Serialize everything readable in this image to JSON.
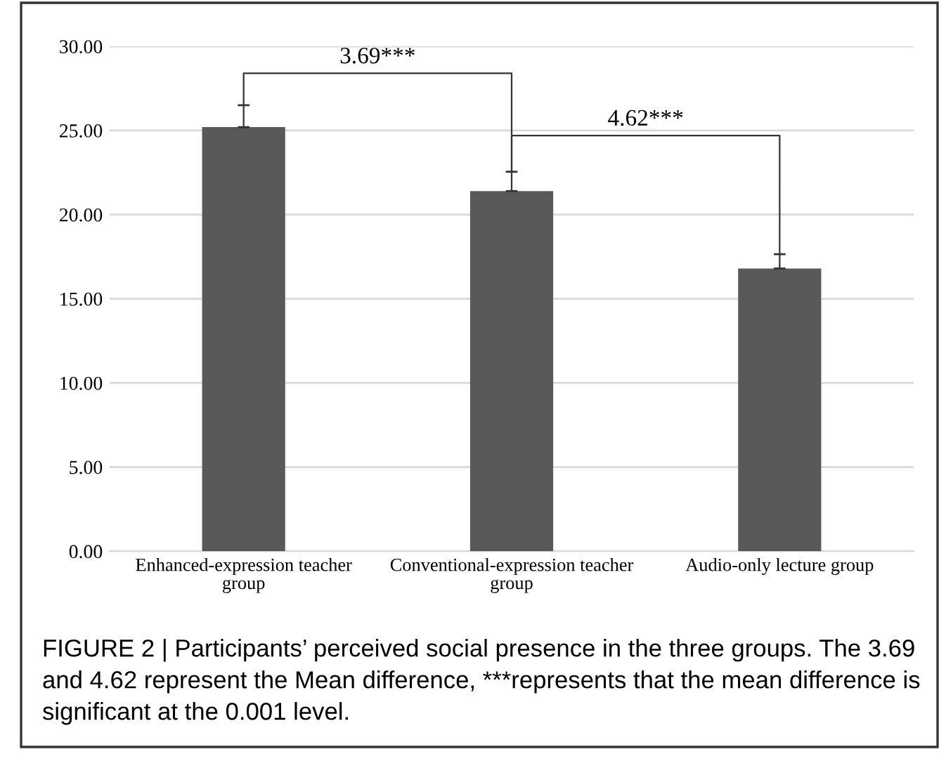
{
  "chart_data": {
    "type": "bar",
    "categories": [
      "Enhanced-expression teacher group",
      "Conventional-expression teacher group",
      "Audio-only lecture group"
    ],
    "values": [
      25.2,
      21.4,
      16.8
    ],
    "errors": [
      [
        25.2,
        26.5
      ],
      [
        21.4,
        22.55
      ],
      [
        16.8,
        17.65
      ]
    ],
    "color": "#595959",
    "ylim": [
      0,
      30
    ],
    "yticks": [
      {
        "value": 0,
        "label": "0.00"
      },
      {
        "value": 5,
        "label": "5.00"
      },
      {
        "value": 10,
        "label": "10.00"
      },
      {
        "value": 15,
        "label": "15.00"
      },
      {
        "value": 20,
        "label": "20.00"
      },
      {
        "value": 25,
        "label": "25.00"
      },
      {
        "value": 30,
        "label": "30.00"
      }
    ],
    "grid": "y",
    "annotations": [
      "3.69***",
      "4.62***",
      "FIGURE 2 | Participants’ perceived social presence in the three groups. The 3.69 and 4.62 represent the Mean difference, ***represents that the mean difference is significant at the 0.001 level."
    ]
  }
}
